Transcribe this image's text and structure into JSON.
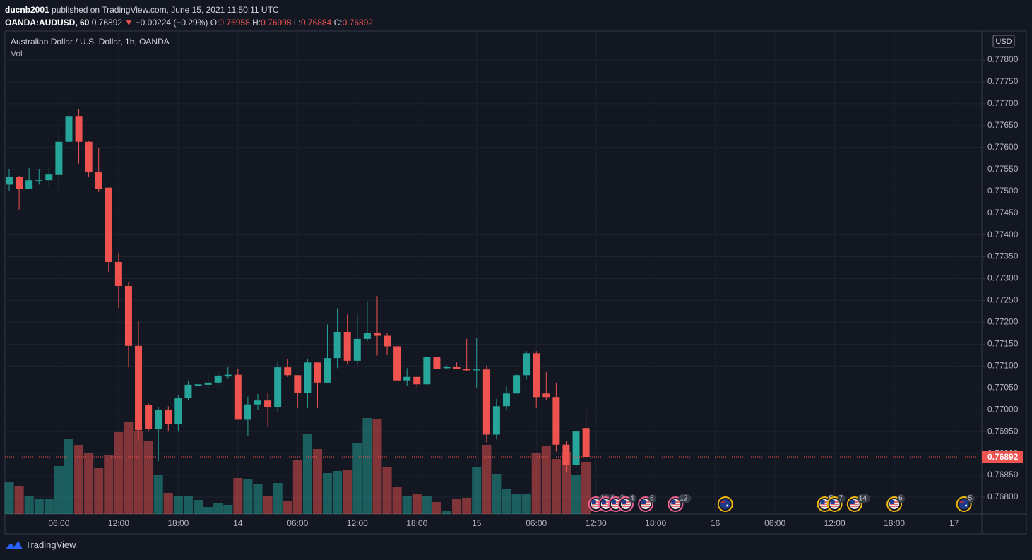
{
  "header": {
    "author": "ducnb2001",
    "published": "published on TradingView.com, June 15, 2021 11:50:11 UTC",
    "symbol": "OANDA:AUDUSD, 60",
    "last": "0.76892",
    "arrow": "▼",
    "change": "−0.00224 (−0.29%)",
    "o_label": "O:",
    "o": "0.76958",
    "h_label": "H:",
    "h": "0.76998",
    "l_label": "L:",
    "l": "0.76884",
    "c_label": "C:",
    "c": "0.76892"
  },
  "footer": {
    "brand": "TradingView"
  },
  "chart_data": {
    "type": "candlestick",
    "title": "Australian Dollar / U.S. Dollar, 1h, OANDA",
    "volume_label": "Vol",
    "currency_label": "USD",
    "up_color": "#26a69a",
    "down_color": "#ef5350",
    "grid": true,
    "x": [
      1,
      2,
      3,
      4,
      5,
      6,
      7,
      8,
      9,
      10,
      11,
      12,
      13,
      14,
      15,
      16,
      17,
      18,
      19,
      20,
      21,
      22,
      23,
      24,
      25,
      26,
      27,
      28,
      29,
      30,
      31,
      32,
      33,
      34,
      35,
      36,
      37,
      38,
      39,
      40,
      41,
      42,
      43,
      44,
      45,
      46,
      47,
      48,
      49,
      50,
      51,
      52,
      53,
      54,
      55,
      56,
      57,
      58,
      59
    ],
    "open": [
      0.77515,
      0.77533,
      0.77505,
      0.77523,
      0.77525,
      0.77537,
      0.77613,
      0.77672,
      0.77613,
      0.77543,
      0.77508,
      0.77338,
      0.77283,
      0.77146,
      0.7701,
      0.76955,
      0.77,
      0.76968,
      0.77026,
      0.77054,
      0.77057,
      0.77062,
      0.77076,
      0.7708,
      0.76977,
      0.77012,
      0.77021,
      0.77006,
      0.77097,
      0.77079,
      0.77038,
      0.77108,
      0.77062,
      0.77118,
      0.77178,
      0.77112,
      0.77162,
      0.77175,
      0.77169,
      0.77145,
      0.77067,
      0.77075,
      0.77058,
      0.7712,
      0.77095,
      0.77098,
      0.77093,
      0.7709,
      0.77092,
      0.76943,
      0.77008,
      0.77037,
      0.77079,
      0.77129,
      0.77037,
      0.77029,
      0.7692,
      0.76874,
      0.76958
    ],
    "high": [
      0.7755,
      0.77535,
      0.77553,
      0.7755,
      0.77556,
      0.77638,
      0.77756,
      0.77687,
      0.77615,
      0.77598,
      0.77508,
      0.77359,
      0.77291,
      0.77202,
      0.77015,
      0.77005,
      0.77008,
      0.77033,
      0.77065,
      0.77088,
      0.77085,
      0.77089,
      0.77097,
      0.77093,
      0.7703,
      0.77036,
      0.77038,
      0.77109,
      0.77116,
      0.77079,
      0.77115,
      0.77108,
      0.77195,
      0.77232,
      0.77218,
      0.77218,
      0.77248,
      0.7726,
      0.77175,
      0.77145,
      0.77095,
      0.77075,
      0.77123,
      0.7712,
      0.77101,
      0.77108,
      0.77162,
      0.77165,
      0.77101,
      0.77025,
      0.77053,
      0.77082,
      0.77134,
      0.77134,
      0.77086,
      0.77062,
      0.76928,
      0.76964,
      0.76998
    ],
    "low": [
      0.775,
      0.77458,
      0.77505,
      0.77515,
      0.77512,
      0.77504,
      0.77606,
      0.77563,
      0.77533,
      0.77498,
      0.77315,
      0.77233,
      0.77097,
      0.76932,
      0.7695,
      0.76882,
      0.7695,
      0.7695,
      0.77021,
      0.77019,
      0.7705,
      0.77055,
      0.77072,
      0.76977,
      0.76939,
      0.77,
      0.76962,
      0.76994,
      0.77075,
      0.77004,
      0.77004,
      0.77004,
      0.7706,
      0.77095,
      0.77103,
      0.77103,
      0.77157,
      0.77124,
      0.77126,
      0.77067,
      0.77055,
      0.77051,
      0.77053,
      0.77091,
      0.77093,
      0.77093,
      0.77088,
      0.77051,
      0.76925,
      0.76932,
      0.77,
      0.77037,
      0.77069,
      0.77004,
      0.77021,
      0.76904,
      0.76858,
      0.76852,
      0.76884
    ],
    "close": [
      0.77533,
      0.77505,
      0.77525,
      0.77525,
      0.77538,
      0.77613,
      0.77672,
      0.77613,
      0.77543,
      0.77505,
      0.77338,
      0.77283,
      0.77146,
      0.76953,
      0.76955,
      0.77,
      0.76968,
      0.77026,
      0.77057,
      0.77058,
      0.77062,
      0.77078,
      0.7708,
      0.76977,
      0.77012,
      0.77021,
      0.77006,
      0.77097,
      0.77079,
      0.77038,
      0.77108,
      0.77062,
      0.77118,
      0.77178,
      0.77112,
      0.77162,
      0.77175,
      0.77169,
      0.77145,
      0.77067,
      0.77075,
      0.77058,
      0.7712,
      0.77094,
      0.77098,
      0.77093,
      0.7709,
      0.77092,
      0.76943,
      0.77008,
      0.77037,
      0.77079,
      0.77129,
      0.77029,
      0.77029,
      0.7692,
      0.76874,
      0.7695,
      0.76892
    ],
    "volume": [
      46,
      40,
      26,
      21,
      22,
      68,
      107,
      98,
      86,
      65,
      83,
      116,
      131,
      117,
      103,
      55,
      30,
      25,
      25,
      20,
      10,
      16,
      13,
      51,
      50,
      43,
      26,
      44,
      19,
      76,
      114,
      92,
      58,
      61,
      62,
      100,
      136,
      135,
      66,
      38,
      25,
      28,
      25,
      17,
      4,
      21,
      23,
      67,
      98,
      57,
      36,
      28,
      29,
      86,
      96,
      78,
      88,
      56,
      74
    ],
    "volume_ylim": [
      0,
      684
    ],
    "xlim": [
      0.574,
      98.8
    ],
    "xticks": [
      {
        "value": 6,
        "label": "06:00"
      },
      {
        "value": 12,
        "label": "12:00"
      },
      {
        "value": 18,
        "label": "18:00"
      },
      {
        "value": 24,
        "label": "14"
      },
      {
        "value": 30,
        "label": "06:00"
      },
      {
        "value": 36,
        "label": "12:00"
      },
      {
        "value": 42,
        "label": "18:00"
      },
      {
        "value": 48,
        "label": "15"
      },
      {
        "value": 54,
        "label": "06:00"
      },
      {
        "value": 60,
        "label": "12:00"
      },
      {
        "value": 66,
        "label": "18:00"
      },
      {
        "value": 72,
        "label": "16"
      },
      {
        "value": 78,
        "label": "06:00"
      },
      {
        "value": 84,
        "label": "12:00"
      },
      {
        "value": 90,
        "label": "18:00"
      },
      {
        "value": 96,
        "label": "17"
      }
    ],
    "ylim": [
      0.767612,
      0.778662
    ],
    "yticks": [
      {
        "value": 0.768,
        "label": "0.76800"
      },
      {
        "value": 0.7685,
        "label": "0.76850"
      },
      {
        "value": 0.769,
        "label": "0.76900"
      },
      {
        "value": 0.7695,
        "label": "0.76950"
      },
      {
        "value": 0.77,
        "label": "0.77000"
      },
      {
        "value": 0.7705,
        "label": "0.77050"
      },
      {
        "value": 0.771,
        "label": "0.77100"
      },
      {
        "value": 0.7715,
        "label": "0.77150"
      },
      {
        "value": 0.772,
        "label": "0.77200"
      },
      {
        "value": 0.7725,
        "label": "0.77250"
      },
      {
        "value": 0.773,
        "label": "0.77300"
      },
      {
        "value": 0.7735,
        "label": "0.77350"
      },
      {
        "value": 0.774,
        "label": "0.77400"
      },
      {
        "value": 0.7745,
        "label": "0.77450"
      },
      {
        "value": 0.775,
        "label": "0.77500"
      },
      {
        "value": 0.7755,
        "label": "0.77550"
      },
      {
        "value": 0.776,
        "label": "0.77600"
      },
      {
        "value": 0.7765,
        "label": "0.77650"
      },
      {
        "value": 0.777,
        "label": "0.77700"
      },
      {
        "value": 0.7775,
        "label": "0.77750"
      },
      {
        "value": 0.778,
        "label": "0.77800"
      }
    ],
    "events": [
      {
        "x": 60,
        "label": "14",
        "country": "US"
      },
      {
        "x": 61,
        "label": "4",
        "country": "US"
      },
      {
        "x": 62,
        "label": "3",
        "country": "US"
      },
      {
        "x": 63,
        "label": "4",
        "country": "US"
      },
      {
        "x": 65,
        "label": "6",
        "country": "US"
      },
      {
        "x": 68,
        "label": "12",
        "country": "US"
      },
      {
        "x": 73,
        "country": "AU"
      },
      {
        "x": 83,
        "label": "5",
        "country": "US"
      },
      {
        "x": 84,
        "label": "7",
        "country": "US"
      },
      {
        "x": 86,
        "label": "14",
        "country": "US"
      },
      {
        "x": 90,
        "label": "6",
        "country": "US"
      },
      {
        "x": 97,
        "label": "5",
        "country": "AU"
      }
    ]
  }
}
